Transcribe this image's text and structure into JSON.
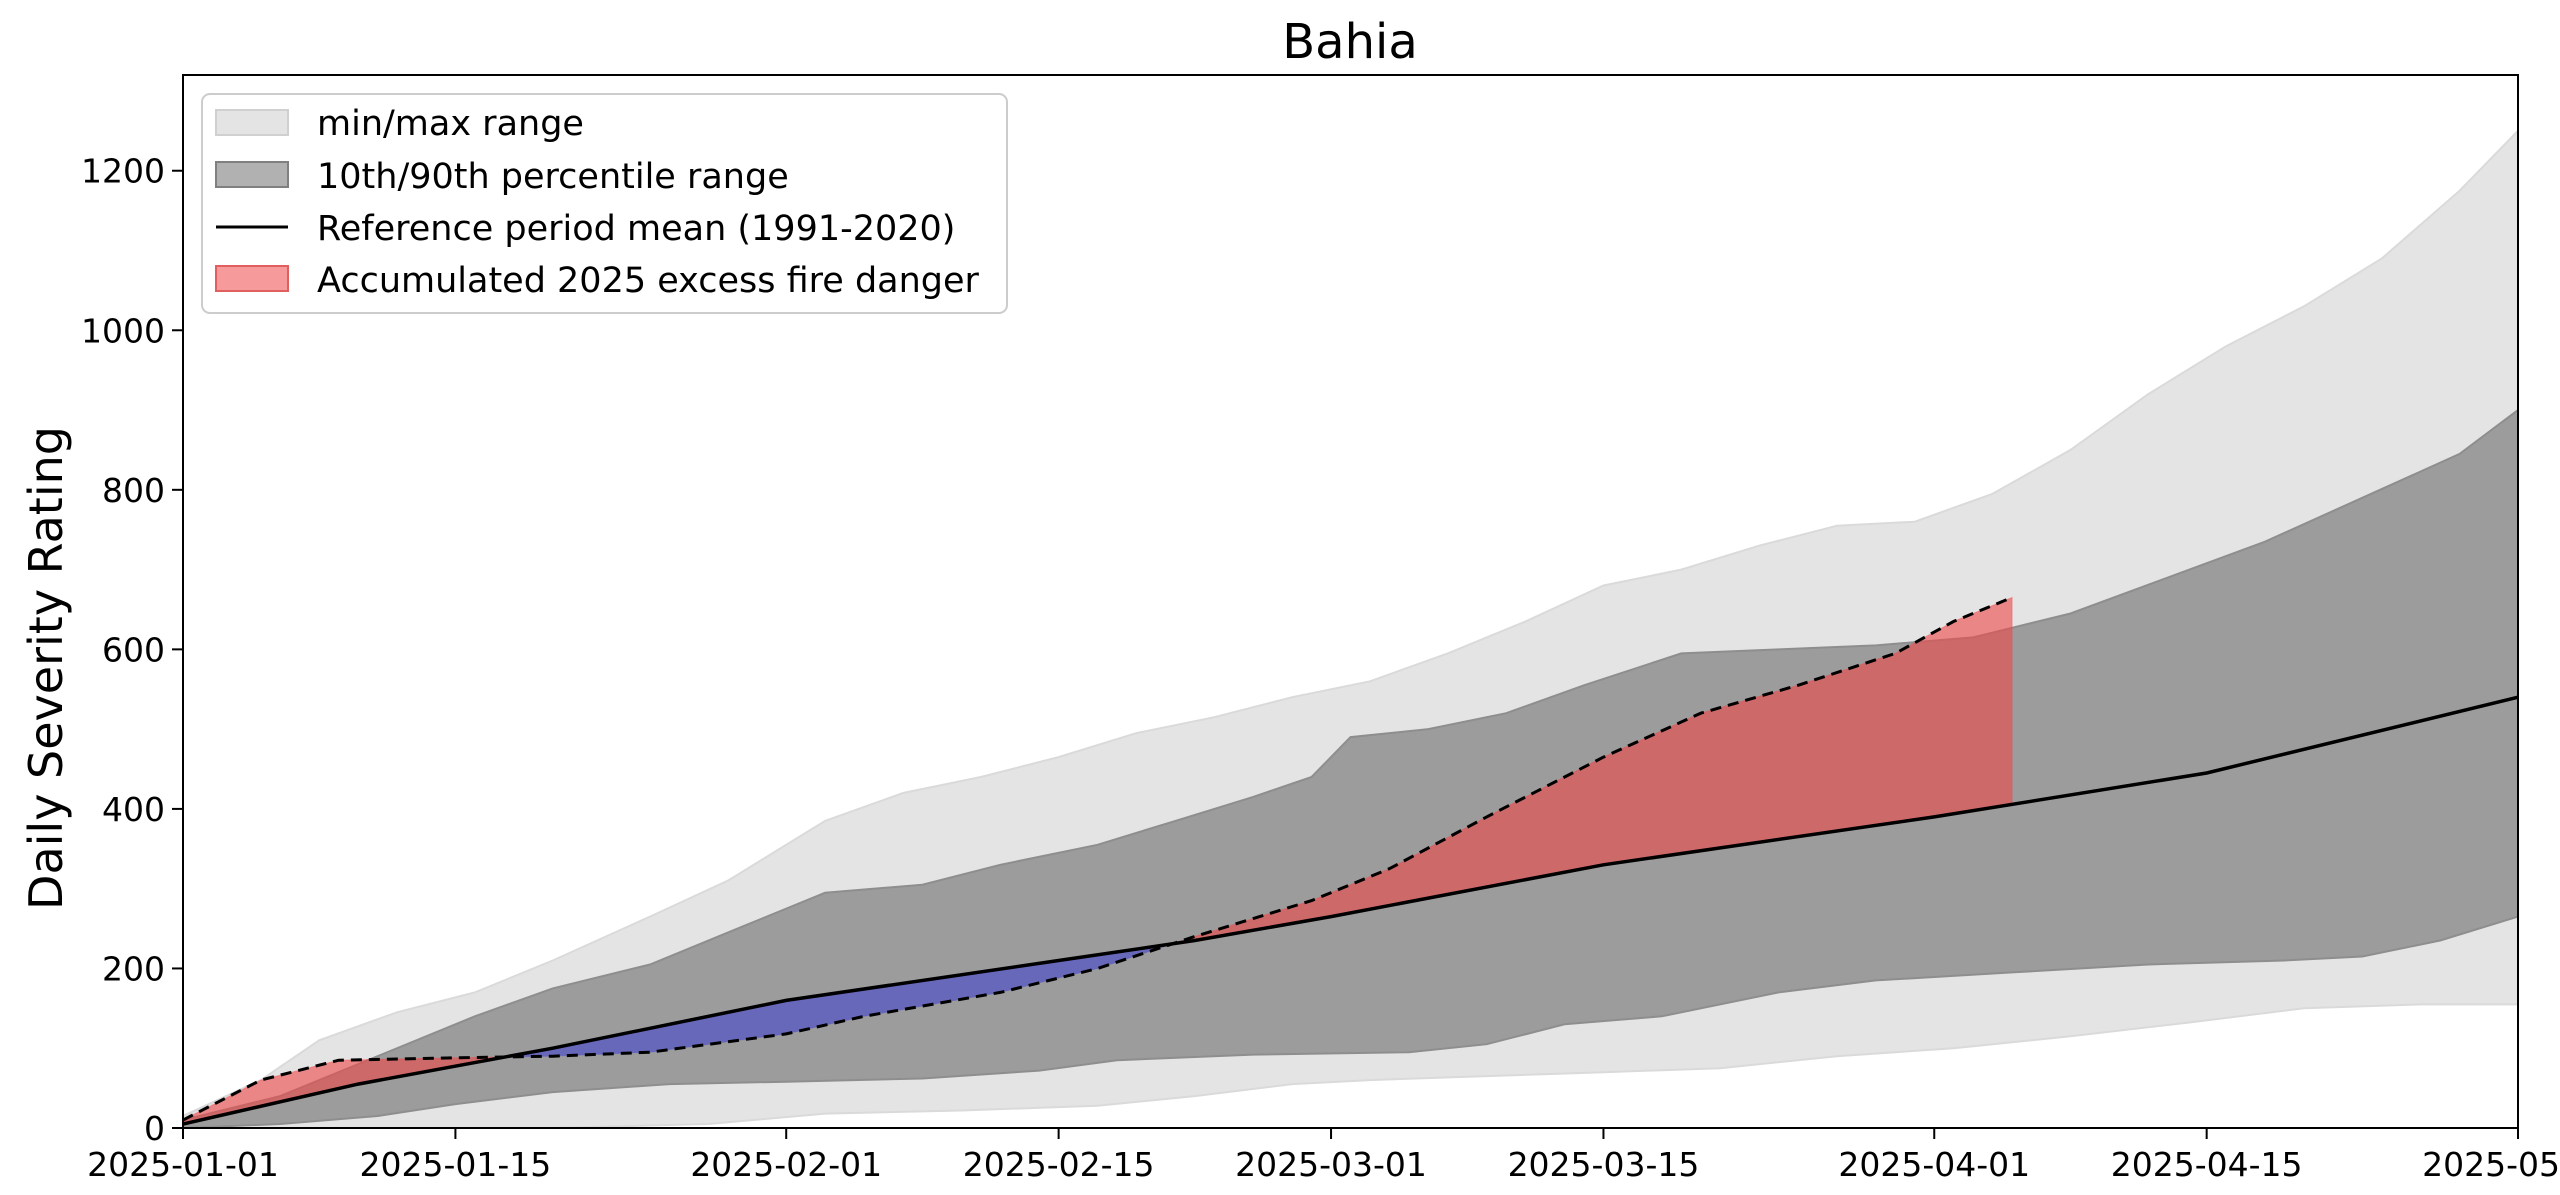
{
  "chart_data": {
    "type": "area",
    "title": "Bahia",
    "xlabel": "",
    "ylabel": "Daily Severity Rating",
    "x_range": [
      "2025-01-01",
      "2025-05-01"
    ],
    "ylim": [
      0,
      1320
    ],
    "x_ticks": [
      {
        "date": "2025-01-01",
        "label": "2025-01-01"
      },
      {
        "date": "2025-01-15",
        "label": "2025-01-15"
      },
      {
        "date": "2025-02-01",
        "label": "2025-02-01"
      },
      {
        "date": "2025-02-15",
        "label": "2025-02-15"
      },
      {
        "date": "2025-03-01",
        "label": "2025-03-01"
      },
      {
        "date": "2025-03-15",
        "label": "2025-03-15"
      },
      {
        "date": "2025-04-01",
        "label": "2025-04-01"
      },
      {
        "date": "2025-04-15",
        "label": "2025-04-15"
      },
      {
        "date": "2025-05-01",
        "label": "2025-05-01"
      }
    ],
    "y_ticks": [
      {
        "value": 0,
        "label": "0"
      },
      {
        "value": 200,
        "label": "200"
      },
      {
        "value": 400,
        "label": "400"
      },
      {
        "value": 600,
        "label": "600"
      },
      {
        "value": 800,
        "label": "800"
      },
      {
        "value": 1000,
        "label": "1000"
      },
      {
        "value": 1200,
        "label": "1200"
      }
    ],
    "grid": false,
    "legend_position": "top-left",
    "legend": [
      {
        "key": "minmax",
        "label": "min/max range"
      },
      {
        "key": "pct",
        "label": "10th/90th percentile range"
      },
      {
        "key": "mean",
        "label": "Reference period mean (1991-2020)"
      },
      {
        "key": "excess",
        "label": "Accumulated 2025 excess fire danger"
      }
    ],
    "colors": {
      "minmax": "#e4e4e4",
      "pct": "#9c9c9c",
      "mean": "#000000",
      "excess": "#f0474a",
      "deficit": "#5757c5",
      "current": "#000000"
    },
    "bands": {
      "minmax_upper": [
        [
          "2025-01-01",
          15
        ],
        [
          "2025-01-05",
          60
        ],
        [
          "2025-01-08",
          110
        ],
        [
          "2025-01-12",
          145
        ],
        [
          "2025-01-16",
          170
        ],
        [
          "2025-01-20",
          210
        ],
        [
          "2025-01-25",
          265
        ],
        [
          "2025-01-29",
          310
        ],
        [
          "2025-02-03",
          385
        ],
        [
          "2025-02-07",
          420
        ],
        [
          "2025-02-11",
          440
        ],
        [
          "2025-02-15",
          465
        ],
        [
          "2025-02-19",
          495
        ],
        [
          "2025-02-23",
          515
        ],
        [
          "2025-02-27",
          540
        ],
        [
          "2025-03-03",
          560
        ],
        [
          "2025-03-07",
          595
        ],
        [
          "2025-03-11",
          635
        ],
        [
          "2025-03-15",
          680
        ],
        [
          "2025-03-19",
          700
        ],
        [
          "2025-03-23",
          730
        ],
        [
          "2025-03-27",
          755
        ],
        [
          "2025-03-31",
          760
        ],
        [
          "2025-04-04",
          795
        ],
        [
          "2025-04-08",
          850
        ],
        [
          "2025-04-12",
          920
        ],
        [
          "2025-04-16",
          980
        ],
        [
          "2025-04-20",
          1030
        ],
        [
          "2025-04-24",
          1090
        ],
        [
          "2025-04-28",
          1175
        ],
        [
          "2025-05-01",
          1250
        ]
      ],
      "minmax_lower": [
        [
          "2025-01-01",
          0
        ],
        [
          "2025-01-10",
          0
        ],
        [
          "2025-01-20",
          0
        ],
        [
          "2025-01-28",
          5
        ],
        [
          "2025-02-03",
          18
        ],
        [
          "2025-02-10",
          22
        ],
        [
          "2025-02-17",
          28
        ],
        [
          "2025-02-22",
          40
        ],
        [
          "2025-02-27",
          55
        ],
        [
          "2025-03-03",
          60
        ],
        [
          "2025-03-09",
          65
        ],
        [
          "2025-03-15",
          70
        ],
        [
          "2025-03-21",
          75
        ],
        [
          "2025-03-27",
          90
        ],
        [
          "2025-04-02",
          100
        ],
        [
          "2025-04-08",
          115
        ],
        [
          "2025-04-14",
          132
        ],
        [
          "2025-04-20",
          150
        ],
        [
          "2025-04-26",
          155
        ],
        [
          "2025-05-01",
          155
        ]
      ],
      "pct_upper": [
        [
          "2025-01-01",
          10
        ],
        [
          "2025-01-06",
          40
        ],
        [
          "2025-01-11",
          90
        ],
        [
          "2025-01-16",
          140
        ],
        [
          "2025-01-20",
          175
        ],
        [
          "2025-01-25",
          205
        ],
        [
          "2025-01-30",
          255
        ],
        [
          "2025-02-03",
          295
        ],
        [
          "2025-02-08",
          305
        ],
        [
          "2025-02-12",
          330
        ],
        [
          "2025-02-17",
          355
        ],
        [
          "2025-02-21",
          385
        ],
        [
          "2025-02-25",
          415
        ],
        [
          "2025-02-28",
          440
        ],
        [
          "2025-03-02",
          490
        ],
        [
          "2025-03-06",
          500
        ],
        [
          "2025-03-10",
          520
        ],
        [
          "2025-03-14",
          555
        ],
        [
          "2025-03-19",
          595
        ],
        [
          "2025-03-24",
          600
        ],
        [
          "2025-03-29",
          605
        ],
        [
          "2025-04-03",
          615
        ],
        [
          "2025-04-08",
          645
        ],
        [
          "2025-04-13",
          690
        ],
        [
          "2025-04-18",
          735
        ],
        [
          "2025-04-23",
          790
        ],
        [
          "2025-04-28",
          845
        ],
        [
          "2025-05-01",
          900
        ]
      ],
      "pct_lower": [
        [
          "2025-01-01",
          0
        ],
        [
          "2025-01-06",
          5
        ],
        [
          "2025-01-11",
          15
        ],
        [
          "2025-01-15",
          30
        ],
        [
          "2025-01-20",
          45
        ],
        [
          "2025-01-26",
          55
        ],
        [
          "2025-02-01",
          58
        ],
        [
          "2025-02-08",
          62
        ],
        [
          "2025-02-14",
          72
        ],
        [
          "2025-02-18",
          85
        ],
        [
          "2025-02-25",
          92
        ],
        [
          "2025-03-05",
          95
        ],
        [
          "2025-03-09",
          105
        ],
        [
          "2025-03-13",
          130
        ],
        [
          "2025-03-18",
          140
        ],
        [
          "2025-03-24",
          170
        ],
        [
          "2025-03-29",
          185
        ],
        [
          "2025-04-05",
          195
        ],
        [
          "2025-04-12",
          205
        ],
        [
          "2025-04-19",
          210
        ],
        [
          "2025-04-23",
          215
        ],
        [
          "2025-04-27",
          235
        ],
        [
          "2025-05-01",
          265
        ]
      ]
    },
    "series": [
      {
        "key": "mean",
        "style": "solid",
        "points": [
          [
            "2025-01-01",
            5
          ],
          [
            "2025-01-10",
            55
          ],
          [
            "2025-01-20",
            100
          ],
          [
            "2025-02-01",
            160
          ],
          [
            "2025-02-15",
            210
          ],
          [
            "2025-02-22",
            235
          ],
          [
            "2025-03-01",
            265
          ],
          [
            "2025-03-15",
            330
          ],
          [
            "2025-04-01",
            390
          ],
          [
            "2025-04-15",
            445
          ],
          [
            "2025-05-01",
            540
          ]
        ]
      },
      {
        "key": "current",
        "style": "dashed",
        "points": [
          [
            "2025-01-01",
            10
          ],
          [
            "2025-01-05",
            60
          ],
          [
            "2025-01-09",
            85
          ],
          [
            "2025-01-15",
            88
          ],
          [
            "2025-01-20",
            90
          ],
          [
            "2025-01-25",
            95
          ],
          [
            "2025-02-01",
            118
          ],
          [
            "2025-02-05",
            140
          ],
          [
            "2025-02-12",
            170
          ],
          [
            "2025-02-17",
            200
          ],
          [
            "2025-02-22",
            240
          ],
          [
            "2025-02-28",
            285
          ],
          [
            "2025-03-04",
            325
          ],
          [
            "2025-03-09",
            390
          ],
          [
            "2025-03-15",
            465
          ],
          [
            "2025-03-20",
            520
          ],
          [
            "2025-03-25",
            555
          ],
          [
            "2025-03-30",
            595
          ],
          [
            "2025-04-02",
            635
          ],
          [
            "2025-04-05",
            665
          ]
        ]
      }
    ]
  }
}
